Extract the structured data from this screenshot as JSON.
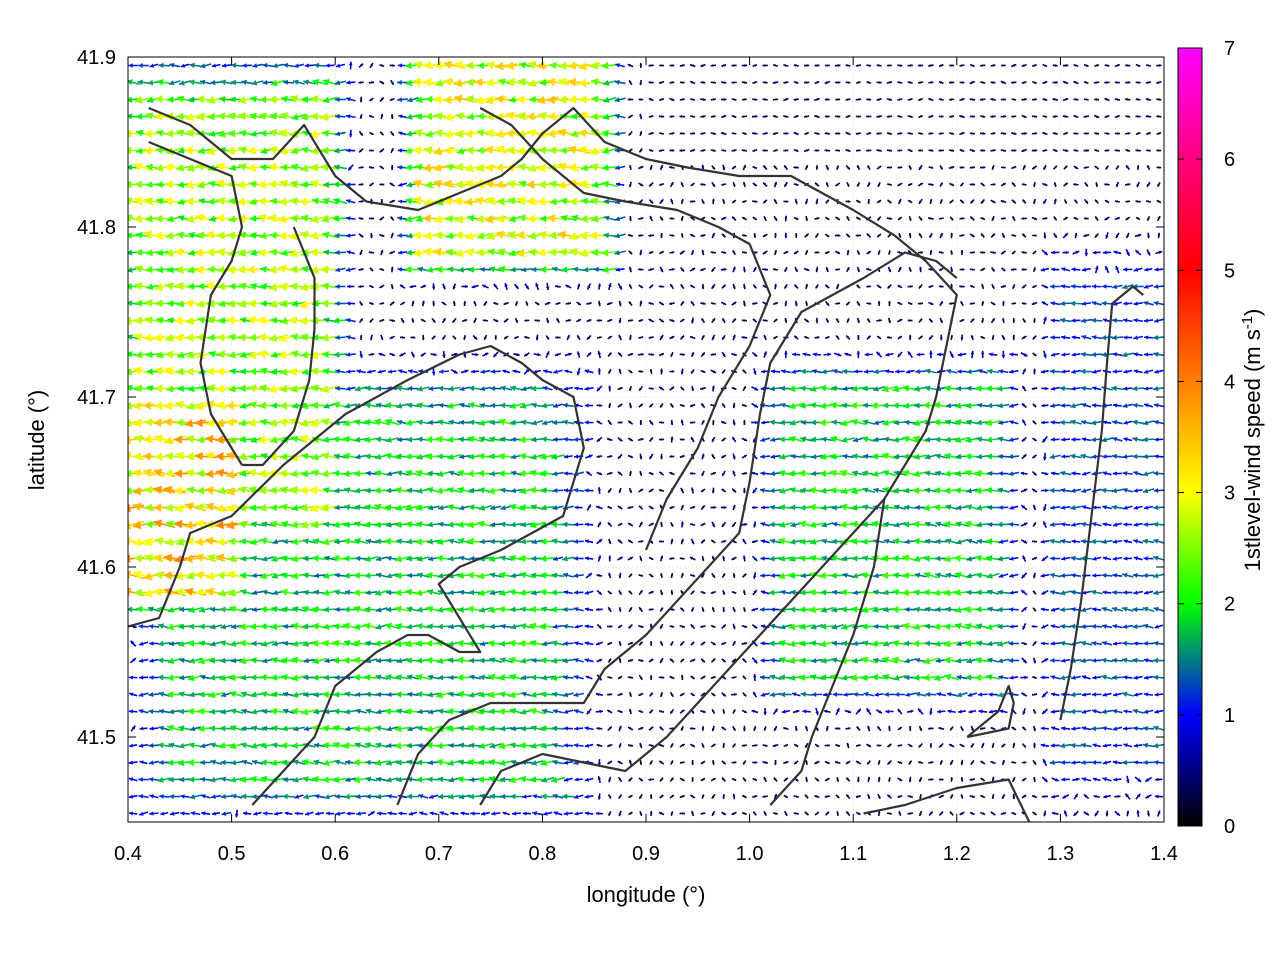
{
  "chart_data": {
    "type": "vector-field",
    "xlabel": "longitude (°)",
    "ylabel": "latitude (°)",
    "xlim": [
      0.4,
      1.4
    ],
    "ylim": [
      41.45,
      41.9
    ],
    "xticks": [
      "0.4",
      "0.5",
      "0.6",
      "0.7",
      "0.8",
      "0.9",
      "1.0",
      "1.1",
      "1.2",
      "1.3",
      "1.4"
    ],
    "yticks": [
      "41.5",
      "41.6",
      "41.7",
      "41.8",
      "41.9"
    ],
    "grid": true,
    "colorbar": {
      "label_main": "1stlevel-wind speed (m s",
      "label_exp": "-1",
      "label_end": ")",
      "range": [
        0,
        7
      ],
      "ticks": [
        "0",
        "1",
        "2",
        "3",
        "4",
        "5",
        "6",
        "7"
      ],
      "colors": [
        "#000000",
        "#0000ff",
        "#00ff00",
        "#ffff00",
        "#ff8000",
        "#ff0000",
        "#ff00ff"
      ]
    },
    "vector_grid": {
      "lon_step": 0.01,
      "lat_step": 0.01,
      "direction": "mostly westward"
    },
    "speed_regions": [
      {
        "name": "northwest",
        "lon": [
          0.4,
          0.6
        ],
        "lat": [
          41.6,
          41.9
        ],
        "speed": 2.5
      },
      {
        "name": "west-yellow",
        "lon": [
          0.4,
          0.5
        ],
        "lat": [
          41.58,
          41.7
        ],
        "speed": 3.2
      },
      {
        "name": "north-yellow",
        "lon": [
          0.68,
          0.86
        ],
        "lat": [
          41.78,
          41.9
        ],
        "speed": 2.8
      },
      {
        "name": "central-south-band",
        "lon": [
          0.4,
          0.85
        ],
        "lat": [
          41.45,
          41.72
        ],
        "speed": 1.8
      },
      {
        "name": "east-band",
        "lon": [
          1.02,
          1.25
        ],
        "lat": [
          41.52,
          41.72
        ],
        "speed": 1.8
      },
      {
        "name": "far-east",
        "lon": [
          1.3,
          1.4
        ],
        "lat": [
          41.45,
          41.8
        ],
        "speed": 1.2
      },
      {
        "name": "calm-center",
        "lon": [
          0.85,
          1.02
        ],
        "lat": [
          41.58,
          41.8
        ],
        "speed": 0.4
      }
    ],
    "contours": [
      [
        [
          0.42,
          41.87
        ],
        [
          0.46,
          41.86
        ],
        [
          0.5,
          41.84
        ],
        [
          0.54,
          41.84
        ],
        [
          0.57,
          41.86
        ],
        [
          0.6,
          41.83
        ],
        [
          0.63,
          41.815
        ],
        [
          0.68,
          41.81
        ],
        [
          0.72,
          41.82
        ],
        [
          0.76,
          41.83
        ],
        [
          0.78,
          41.84
        ],
        [
          0.8,
          41.855
        ],
        [
          0.83,
          41.87
        ],
        [
          0.86,
          41.85
        ],
        [
          0.9,
          41.84
        ],
        [
          0.94,
          41.835
        ],
        [
          0.99,
          41.83
        ],
        [
          1.04,
          41.83
        ],
        [
          1.07,
          41.82
        ],
        [
          1.1,
          41.81
        ],
        [
          1.14,
          41.795
        ],
        [
          1.17,
          41.78
        ],
        [
          1.2,
          41.76
        ],
        [
          1.19,
          41.73
        ],
        [
          1.18,
          41.7
        ],
        [
          1.17,
          41.68
        ],
        [
          1.15,
          41.66
        ],
        [
          1.13,
          41.64
        ],
        [
          1.12,
          41.6
        ],
        [
          1.1,
          41.56
        ],
        [
          1.08,
          41.53
        ],
        [
          1.06,
          41.5
        ],
        [
          1.05,
          41.48
        ],
        [
          1.02,
          41.46
        ]
      ],
      [
        [
          0.42,
          41.85
        ],
        [
          0.46,
          41.84
        ],
        [
          0.5,
          41.83
        ],
        [
          0.51,
          41.8
        ],
        [
          0.5,
          41.78
        ],
        [
          0.48,
          41.76
        ],
        [
          0.47,
          41.72
        ],
        [
          0.48,
          41.69
        ],
        [
          0.5,
          41.67
        ],
        [
          0.51,
          41.66
        ]
      ],
      [
        [
          0.56,
          41.8
        ],
        [
          0.58,
          41.77
        ],
        [
          0.58,
          41.74
        ],
        [
          0.575,
          41.71
        ],
        [
          0.56,
          41.68
        ],
        [
          0.53,
          41.66
        ],
        [
          0.51,
          41.66
        ]
      ],
      [
        [
          0.4,
          41.565
        ],
        [
          0.43,
          41.57
        ],
        [
          0.45,
          41.6
        ],
        [
          0.46,
          41.62
        ],
        [
          0.5,
          41.63
        ],
        [
          0.55,
          41.66
        ],
        [
          0.61,
          41.69
        ],
        [
          0.67,
          41.71
        ],
        [
          0.72,
          41.725
        ],
        [
          0.75,
          41.73
        ],
        [
          0.78,
          41.72
        ],
        [
          0.8,
          41.71
        ],
        [
          0.83,
          41.7
        ],
        [
          0.84,
          41.67
        ],
        [
          0.82,
          41.63
        ],
        [
          0.79,
          41.62
        ],
        [
          0.76,
          41.61
        ],
        [
          0.72,
          41.6
        ],
        [
          0.7,
          41.59
        ],
        [
          0.72,
          41.57
        ],
        [
          0.74,
          41.55
        ],
        [
          0.72,
          41.55
        ],
        [
          0.69,
          41.56
        ],
        [
          0.67,
          41.56
        ],
        [
          0.64,
          41.55
        ],
        [
          0.6,
          41.53
        ],
        [
          0.58,
          41.5
        ],
        [
          0.55,
          41.48
        ],
        [
          0.52,
          41.46
        ]
      ],
      [
        [
          0.66,
          41.46
        ],
        [
          0.68,
          41.49
        ],
        [
          0.71,
          41.51
        ],
        [
          0.75,
          41.52
        ],
        [
          0.8,
          41.52
        ],
        [
          0.84,
          41.52
        ],
        [
          0.86,
          41.54
        ],
        [
          0.9,
          41.56
        ],
        [
          0.93,
          41.58
        ],
        [
          0.96,
          41.6
        ],
        [
          0.99,
          41.62
        ],
        [
          1.0,
          41.65
        ],
        [
          1.01,
          41.69
        ],
        [
          1.02,
          41.72
        ],
        [
          1.05,
          41.75
        ],
        [
          1.08,
          41.76
        ],
        [
          1.11,
          41.77
        ],
        [
          1.15,
          41.785
        ],
        [
          1.18,
          41.78
        ],
        [
          1.2,
          41.77
        ]
      ],
      [
        [
          0.74,
          41.46
        ],
        [
          0.76,
          41.48
        ],
        [
          0.8,
          41.49
        ],
        [
          0.84,
          41.485
        ],
        [
          0.88,
          41.48
        ],
        [
          0.92,
          41.5
        ],
        [
          0.95,
          41.52
        ],
        [
          0.98,
          41.54
        ],
        [
          1.01,
          41.56
        ],
        [
          1.04,
          41.58
        ],
        [
          1.07,
          41.6
        ],
        [
          1.1,
          41.62
        ],
        [
          1.13,
          41.64
        ]
      ],
      [
        [
          1.11,
          41.455
        ],
        [
          1.15,
          41.46
        ],
        [
          1.2,
          41.47
        ],
        [
          1.25,
          41.475
        ],
        [
          1.27,
          41.45
        ]
      ],
      [
        [
          1.3,
          41.51
        ],
        [
          1.31,
          41.54
        ],
        [
          1.32,
          41.58
        ],
        [
          1.33,
          41.63
        ],
        [
          1.34,
          41.68
        ],
        [
          1.345,
          41.72
        ],
        [
          1.35,
          41.755
        ],
        [
          1.37,
          41.765
        ],
        [
          1.38,
          41.76
        ]
      ],
      [
        [
          1.21,
          41.5
        ],
        [
          1.25,
          41.505
        ],
        [
          1.255,
          41.52
        ],
        [
          1.25,
          41.53
        ],
        [
          1.24,
          41.515
        ],
        [
          1.21,
          41.5
        ]
      ],
      [
        [
          0.9,
          41.61
        ],
        [
          0.92,
          41.64
        ],
        [
          0.95,
          41.67
        ],
        [
          0.97,
          41.7
        ],
        [
          1.0,
          41.73
        ],
        [
          1.02,
          41.76
        ],
        [
          1.0,
          41.79
        ],
        [
          0.97,
          41.8
        ],
        [
          0.93,
          41.81
        ],
        [
          0.88,
          41.815
        ],
        [
          0.84,
          41.82
        ],
        [
          0.8,
          41.84
        ],
        [
          0.77,
          41.86
        ],
        [
          0.74,
          41.87
        ]
      ]
    ]
  }
}
